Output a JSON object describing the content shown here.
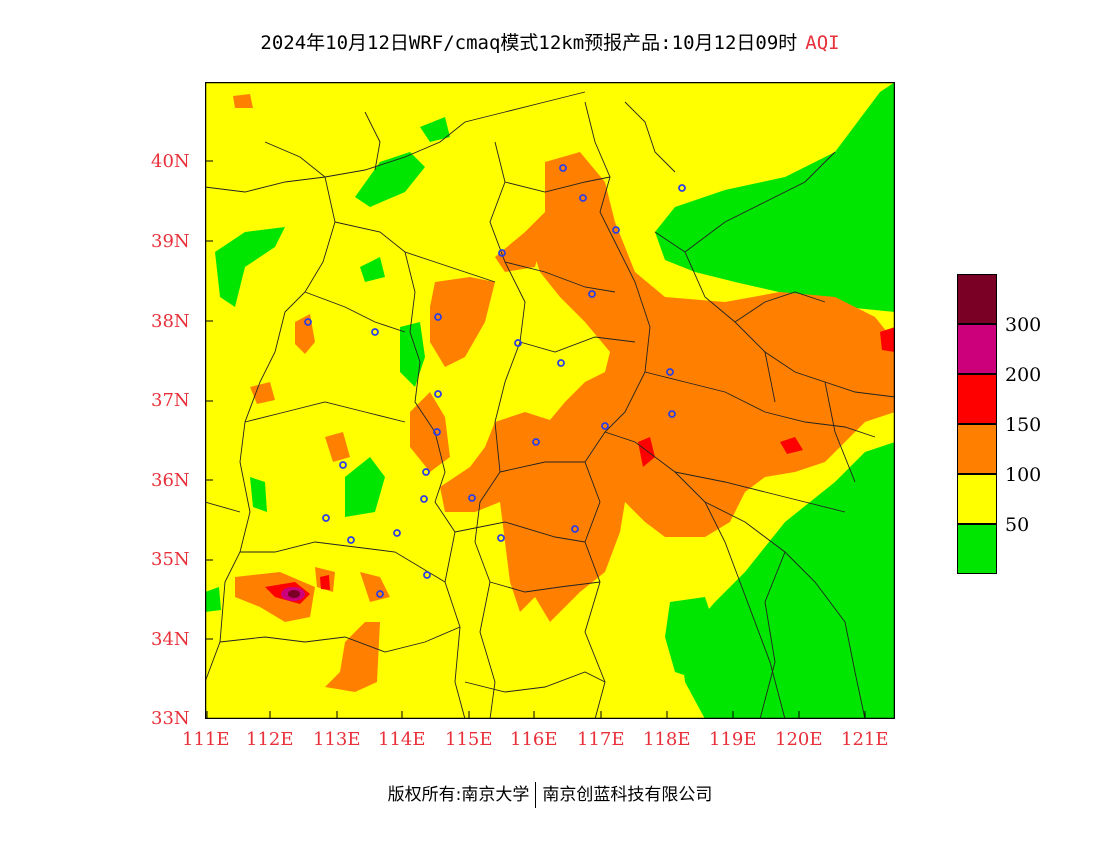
{
  "header": {
    "title": "2024年10月12日WRF/cmaq模式12km预报产品:10月12日09时",
    "product": "AQI"
  },
  "axes": {
    "lat_labels": [
      "40N",
      "39N",
      "38N",
      "37N",
      "36N",
      "35N",
      "34N",
      "33N"
    ],
    "lon_labels": [
      "111E",
      "112E",
      "113E",
      "114E",
      "115E",
      "116E",
      "117E",
      "118E",
      "119E",
      "120E",
      "121E"
    ],
    "lat_range": [
      33,
      41
    ],
    "lon_range": [
      111,
      121.7
    ]
  },
  "legend": {
    "labels": [
      "300",
      "200",
      "150",
      "100",
      "50"
    ],
    "colors": [
      "#7a0026",
      "#cc007a",
      "#ff0000",
      "#ff8000",
      "#ffff00",
      "#00e600"
    ]
  },
  "footer": {
    "copyright": "版权所有:南京大学",
    "company": "南京创蓝科技有限公司"
  },
  "colors": {
    "good": "#00e600",
    "moderate": "#ffff00",
    "unhealthy_sensitive": "#ff8000",
    "unhealthy": "#ff0000",
    "very_unhealthy": "#cc007a",
    "hazardous": "#7a0026",
    "axis_label": "#e8303a",
    "station_marker": "#3040e0"
  }
}
